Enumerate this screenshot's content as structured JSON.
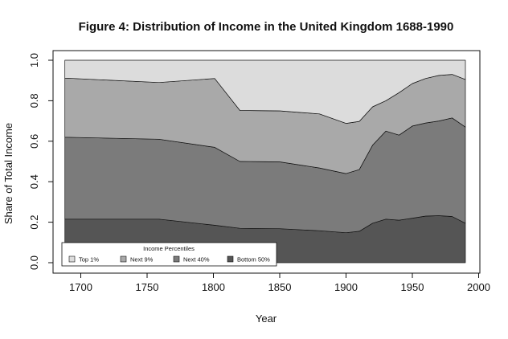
{
  "chart_data": {
    "type": "area",
    "title": "Figure 4: Distribution of Income in the United Kingdom 1688-1990",
    "xlabel": "Year",
    "ylabel": "Share of Total Income",
    "xlim": [
      1680,
      2000
    ],
    "ylim": [
      0,
      1.0
    ],
    "xticks": [
      "1700",
      "1750",
      "1800",
      "1850",
      "1900",
      "1950",
      "2000"
    ],
    "yticks": [
      "0.0",
      "0.2",
      "0.4",
      "0.6",
      "0.8",
      "1.0"
    ],
    "stacked": true,
    "x": [
      1688,
      1759,
      1801,
      1820,
      1850,
      1880,
      1900,
      1910,
      1920,
      1930,
      1940,
      1950,
      1960,
      1970,
      1980,
      1990
    ],
    "legend": {
      "title": "Income Percentiles",
      "placement": "bottom-left"
    },
    "series": [
      {
        "name": "Bottom 50%",
        "color": "#555555",
        "cumulative": [
          0.215,
          0.215,
          0.185,
          0.17,
          0.168,
          0.158,
          0.148,
          0.155,
          0.195,
          0.215,
          0.21,
          0.22,
          0.23,
          0.232,
          0.228,
          0.195
        ]
      },
      {
        "name": "Next 40%",
        "color": "#7b7b7b",
        "cumulative": [
          0.62,
          0.61,
          0.57,
          0.5,
          0.498,
          0.468,
          0.44,
          0.46,
          0.58,
          0.65,
          0.63,
          0.675,
          0.69,
          0.7,
          0.715,
          0.67
        ]
      },
      {
        "name": "Next 9%",
        "color": "#a9a9a9",
        "cumulative": [
          0.912,
          0.89,
          0.91,
          0.752,
          0.75,
          0.735,
          0.688,
          0.698,
          0.77,
          0.8,
          0.84,
          0.885,
          0.91,
          0.925,
          0.93,
          0.905
        ]
      },
      {
        "name": "Top 1%",
        "color": "#dcdcdc",
        "cumulative": [
          1.0,
          1.0,
          1.0,
          1.0,
          1.0,
          1.0,
          1.0,
          1.0,
          1.0,
          1.0,
          1.0,
          1.0,
          1.0,
          1.0,
          1.0,
          1.0
        ]
      }
    ]
  }
}
